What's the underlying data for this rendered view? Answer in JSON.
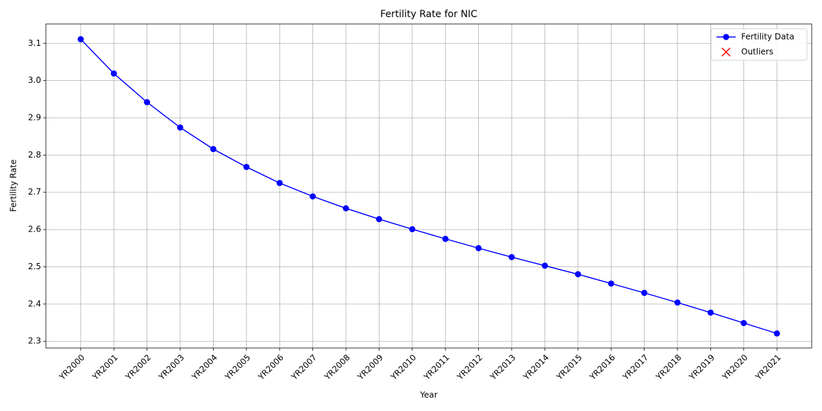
{
  "chart_data": {
    "type": "line",
    "title": "Fertility Rate for NIC",
    "x_label": "Year",
    "y_label": "Fertility Rate",
    "categories": [
      "YR2000",
      "YR2001",
      "YR2002",
      "YR2003",
      "YR2004",
      "YR2005",
      "YR2006",
      "YR2007",
      "YR2008",
      "YR2009",
      "YR2010",
      "YR2011",
      "YR2012",
      "YR2013",
      "YR2014",
      "YR2015",
      "YR2016",
      "YR2017",
      "YR2018",
      "YR2019",
      "YR2020",
      "YR2021"
    ],
    "series": [
      {
        "name": "Fertility Data",
        "color": "#0000ff",
        "marker": "o",
        "values": [
          3.111,
          3.019,
          2.942,
          2.874,
          2.816,
          2.768,
          2.725,
          2.689,
          2.657,
          2.628,
          2.601,
          2.575,
          2.55,
          2.526,
          2.503,
          2.48,
          2.455,
          2.43,
          2.404,
          2.377,
          2.349,
          2.321
        ]
      },
      {
        "name": "Outliers",
        "color": "#ff0000",
        "marker": "x",
        "values": [
          null,
          null,
          null,
          null,
          null,
          null,
          null,
          null,
          null,
          null,
          null,
          null,
          null,
          null,
          null,
          null,
          null,
          null,
          null,
          null,
          null,
          null
        ]
      }
    ],
    "ylim": [
      2.282,
      3.152
    ],
    "yticks": [
      2.3,
      2.4,
      2.5,
      2.6,
      2.7,
      2.8,
      2.9,
      {
        "value": 3,
        "label": "3.0"
      },
      3.1
    ],
    "grid": true,
    "legend": "upper-right"
  }
}
